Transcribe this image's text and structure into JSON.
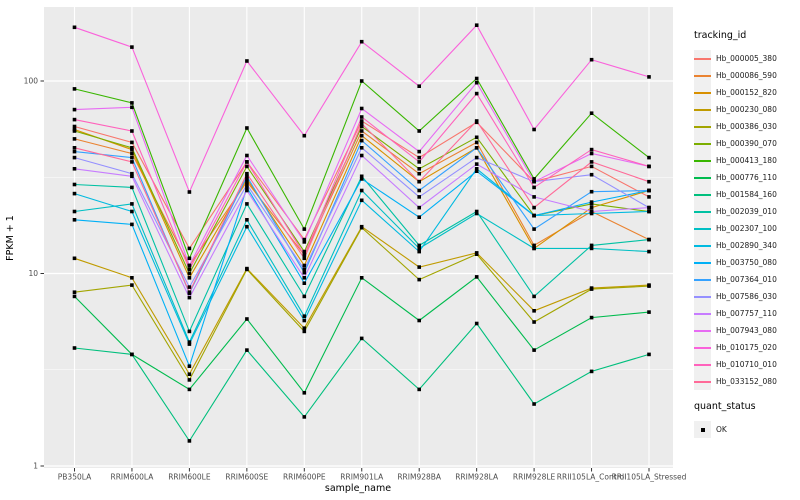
{
  "chart_data": {
    "type": "line",
    "title": "",
    "xlabel": "sample_name",
    "ylabel": "FPKM + 1",
    "y_scale": "log10",
    "ylim": [
      0.95,
      242
    ],
    "y_major_ticks": [
      1,
      10,
      100
    ],
    "y_minor_ticks": [
      3.1623,
      31.623
    ],
    "grid": "on",
    "legend_position": "right",
    "point_shape": "black-square",
    "categories": [
      "PB350LA",
      "RRIM600LA",
      "RRIM600LE",
      "RRIM600SE",
      "RRIM600PE",
      "RRIM901LA",
      "RRIM928BA",
      "RRIM928LA",
      "RRIM928LE",
      "RRII105LA_Control",
      "RRII105LA_Stressed"
    ],
    "series": [
      {
        "name": "Hb_000005_380",
        "color": "#F8766D",
        "values": [
          58,
          48,
          13.5,
          38,
          15,
          62,
          40,
          61,
          30,
          36,
          25
        ]
      },
      {
        "name": "Hb_000086_590",
        "color": "#EA8331",
        "values": [
          50,
          42,
          11,
          30,
          12.5,
          55,
          33,
          48,
          14,
          21,
          15
        ]
      },
      {
        "name": "Hb_000152_820",
        "color": "#D89000",
        "values": [
          56,
          44,
          9.5,
          31,
          11,
          52,
          30,
          45,
          13.5,
          22,
          27
        ]
      },
      {
        "name": "Hb_000230_080",
        "color": "#C09B00",
        "values": [
          12,
          9.5,
          3.0,
          10.6,
          5.2,
          17.5,
          10.8,
          12.8,
          6.4,
          8.4,
          8.7
        ]
      },
      {
        "name": "Hb_000386_030",
        "color": "#A3A500",
        "values": [
          8,
          8.7,
          2.8,
          10.5,
          5.0,
          17.3,
          9.3,
          12.6,
          5.6,
          8.3,
          8.6
        ]
      },
      {
        "name": "Hb_000390_070",
        "color": "#7CAE00",
        "values": [
          55,
          45,
          10,
          36,
          13,
          58,
          35,
          51,
          20,
          23,
          21
        ]
      },
      {
        "name": "Hb_000413_180",
        "color": "#39B600",
        "values": [
          91,
          77,
          12,
          57,
          17,
          100,
          55,
          103,
          31,
          68,
          40
        ]
      },
      {
        "name": "Hb_000776_110",
        "color": "#00BB4E",
        "values": [
          7.6,
          3.8,
          2.5,
          5.8,
          2.4,
          9.5,
          5.7,
          9.6,
          4.0,
          5.9,
          6.3
        ]
      },
      {
        "name": "Hb_001584_160",
        "color": "#00BF7D",
        "values": [
          4.1,
          3.8,
          1.35,
          4.0,
          1.8,
          4.6,
          2.5,
          5.5,
          2.1,
          3.1,
          3.8
        ]
      },
      {
        "name": "Hb_002039_010",
        "color": "#00C1A3",
        "values": [
          29,
          28,
          5.0,
          23,
          7.6,
          32,
          14,
          21,
          7.6,
          14,
          15
        ]
      },
      {
        "name": "Hb_002307_100",
        "color": "#00BFC4",
        "values": [
          21,
          23,
          4.4,
          19,
          6.0,
          27,
          13.5,
          20.5,
          13.5,
          13.5,
          13
        ]
      },
      {
        "name": "Hb_002890_340",
        "color": "#00BAE0",
        "values": [
          26,
          21,
          4.3,
          17.5,
          5.7,
          24,
          13,
          35,
          20,
          20.5,
          21
        ]
      },
      {
        "name": "Hb_003750_080",
        "color": "#00B0F6",
        "values": [
          19,
          18,
          3.3,
          28,
          8.9,
          31,
          19.6,
          34,
          20,
          23.5,
          27
        ]
      },
      {
        "name": "Hb_007364_010",
        "color": "#35A2FF",
        "values": [
          43,
          40,
          7.9,
          32,
          10.1,
          49,
          27,
          45,
          17,
          26.6,
          27
        ]
      },
      {
        "name": "Hb_007586_030",
        "color": "#9590FF",
        "values": [
          40,
          33,
          8.5,
          29,
          10.5,
          45,
          25,
          40,
          30,
          32.6,
          22
        ]
      },
      {
        "name": "Hb_007757_110",
        "color": "#C77CFF",
        "values": [
          35,
          32,
          7.5,
          27,
          9.5,
          41,
          22,
          37,
          25,
          21,
          22
        ]
      },
      {
        "name": "Hb_007943_080",
        "color": "#E76BF3",
        "values": [
          71,
          73,
          11,
          41,
          14.6,
          72,
          43,
          98,
          30,
          42,
          36
        ]
      },
      {
        "name": "Hb_010175_020",
        "color": "#FA62DB",
        "values": [
          190,
          150,
          26.5,
          127,
          52,
          160,
          94,
          195,
          56,
          129,
          105
        ]
      },
      {
        "name": "Hb_010710_010",
        "color": "#FF62BC",
        "values": [
          63,
          55,
          10.5,
          38,
          12.5,
          65,
          38,
          86,
          28,
          44,
          36
        ]
      },
      {
        "name": "Hb_033152_080",
        "color": "#FF6A98",
        "values": [
          45,
          38,
          8.0,
          33,
          12,
          60,
          30,
          62,
          22,
          38,
          30
        ]
      }
    ]
  },
  "legend": {
    "tracking_title": "tracking_id",
    "quant_title": "quant_status",
    "quant_items": [
      {
        "label": "OK",
        "marker": "black-square"
      }
    ]
  },
  "theme": {
    "panel_bg": "#EBEBEB",
    "grid_color": "#FFFFFF",
    "tick_text_color": "#4D4D4D",
    "axis_title_color": "#000000",
    "point_color": "#000000",
    "tick_mark_color": "#333333",
    "background": "#FFFFFF"
  }
}
